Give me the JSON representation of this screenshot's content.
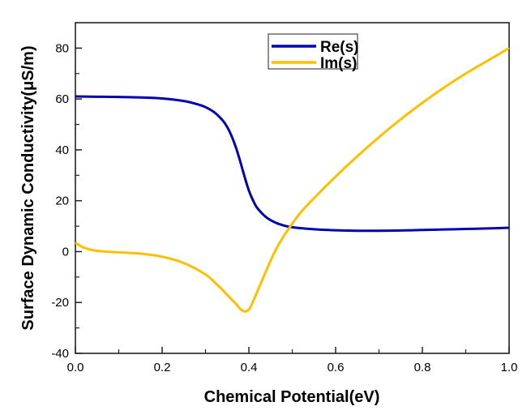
{
  "chart_data": {
    "type": "line",
    "title": "",
    "xlabel": "Chemical Potential(eV)",
    "ylabel": "Surface Dynamic Conductivity(μS/m)",
    "xlim": [
      0.0,
      1.0
    ],
    "ylim": [
      -40,
      90
    ],
    "x_ticks": [
      "0.0",
      "0.2",
      "0.4",
      "0.6",
      "0.8",
      "1.0"
    ],
    "x_tick_values": [
      0.0,
      0.2,
      0.4,
      0.6,
      0.8,
      1.0
    ],
    "y_ticks": [
      "-40",
      "-20",
      "0",
      "20",
      "40",
      "60",
      "80"
    ],
    "y_tick_values": [
      -40,
      -20,
      0,
      20,
      40,
      60,
      80
    ],
    "grid": false,
    "legend_position": "top-center",
    "series": [
      {
        "name": "Re(s)",
        "color": "#0000b4",
        "x": [
          0.0,
          0.05,
          0.1,
          0.15,
          0.2,
          0.25,
          0.28,
          0.3,
          0.32,
          0.34,
          0.35,
          0.36,
          0.37,
          0.38,
          0.39,
          0.4,
          0.41,
          0.42,
          0.44,
          0.46,
          0.48,
          0.5,
          0.55,
          0.6,
          0.65,
          0.7,
          0.75,
          0.8,
          0.85,
          0.9,
          0.95,
          1.0
        ],
        "y": [
          61.0,
          60.9,
          60.8,
          60.6,
          60.2,
          59.2,
          58.0,
          56.8,
          54.8,
          51.5,
          49.0,
          45.5,
          41.0,
          35.5,
          29.5,
          24.0,
          20.0,
          17.0,
          13.5,
          11.5,
          10.3,
          9.6,
          8.8,
          8.4,
          8.2,
          8.2,
          8.3,
          8.5,
          8.7,
          8.9,
          9.1,
          9.4
        ]
      },
      {
        "name": "Im(s)",
        "color": "#ffbf00",
        "x": [
          0.0,
          0.02,
          0.05,
          0.1,
          0.15,
          0.2,
          0.25,
          0.3,
          0.33,
          0.35,
          0.37,
          0.38,
          0.39,
          0.4,
          0.41,
          0.42,
          0.44,
          0.46,
          0.48,
          0.5,
          0.52,
          0.55,
          0.6,
          0.65,
          0.7,
          0.75,
          0.8,
          0.85,
          0.9,
          0.95,
          1.0
        ],
        "y": [
          3.5,
          1.5,
          0.3,
          -0.3,
          -0.8,
          -2.0,
          -4.5,
          -9.0,
          -13.5,
          -17.0,
          -20.5,
          -22.5,
          -23.5,
          -22.8,
          -19.5,
          -15.5,
          -7.5,
          0.0,
          6.0,
          11.0,
          15.5,
          21.0,
          29.5,
          37.5,
          45.0,
          52.0,
          58.5,
          64.5,
          70.0,
          75.0,
          80.0
        ]
      }
    ]
  }
}
